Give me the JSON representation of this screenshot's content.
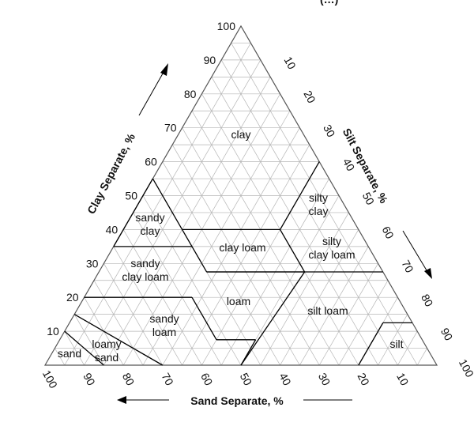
{
  "header_fragment": "(…) ",
  "axes": {
    "clay": {
      "title": "Clay Separate, %",
      "ticks": [
        "10",
        "20",
        "30",
        "40",
        "50",
        "60",
        "70",
        "80",
        "90",
        "100"
      ]
    },
    "silt": {
      "title": "Silt Separate, %",
      "ticks": [
        "10",
        "20",
        "30",
        "40",
        "50",
        "60",
        "70",
        "80",
        "90",
        "100"
      ]
    },
    "sand": {
      "title": "Sand Separate, %",
      "ticks": [
        "100",
        "90",
        "80",
        "70",
        "60",
        "50",
        "40",
        "30",
        "20",
        "10"
      ]
    }
  },
  "regions": [
    {
      "id": "clay",
      "lines": [
        "clay"
      ]
    },
    {
      "id": "silty-clay",
      "lines": [
        "silty",
        "clay"
      ]
    },
    {
      "id": "sandy-clay",
      "lines": [
        "sandy",
        "clay"
      ]
    },
    {
      "id": "clay-loam",
      "lines": [
        "clay loam"
      ]
    },
    {
      "id": "silty-clay-loam",
      "lines": [
        "silty",
        "clay loam"
      ]
    },
    {
      "id": "sandy-clay-loam",
      "lines": [
        "sandy",
        "clay loam"
      ]
    },
    {
      "id": "loam",
      "lines": [
        "loam"
      ]
    },
    {
      "id": "silt-loam",
      "lines": [
        "silt loam"
      ]
    },
    {
      "id": "sandy-loam",
      "lines": [
        "sandy",
        "loam"
      ]
    },
    {
      "id": "loamy-sand",
      "lines": [
        "loamy",
        "sand"
      ]
    },
    {
      "id": "sand",
      "lines": [
        "sand"
      ]
    },
    {
      "id": "silt",
      "lines": [
        "silt"
      ]
    }
  ]
}
